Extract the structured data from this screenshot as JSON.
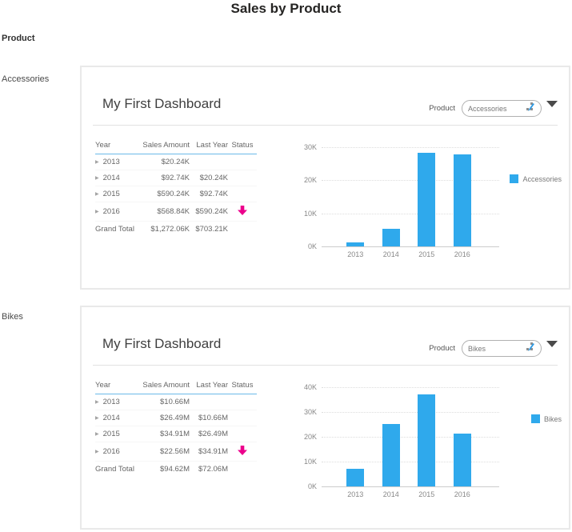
{
  "page": {
    "title": "Sales by Product",
    "field_label": "Product",
    "group_labels": [
      "Accessories",
      "Bikes"
    ]
  },
  "panels": [
    {
      "title": "My First Dashboard",
      "slicer": {
        "label": "Product",
        "value": "Accessories"
      },
      "table": {
        "headers": [
          "Year",
          "Sales Amount",
          "Last Year",
          "Status"
        ],
        "rows": [
          [
            "2013",
            "$20.24K",
            "",
            ""
          ],
          [
            "2014",
            "$92.74K",
            "$20.24K",
            ""
          ],
          [
            "2015",
            "$590.24K",
            "$92.74K",
            ""
          ],
          [
            "2016",
            "$568.84K",
            "$590.24K",
            "decrease"
          ]
        ],
        "grand_total": [
          "Grand Total",
          "$1,272.06K",
          "$703.21K",
          ""
        ]
      }
    },
    {
      "title": "My First Dashboard",
      "slicer": {
        "label": "Product",
        "value": "Bikes"
      },
      "table": {
        "headers": [
          "Year",
          "Sales Amount",
          "Last Year",
          "Status"
        ],
        "rows": [
          [
            "2013",
            "$10.66M",
            "",
            ""
          ],
          [
            "2014",
            "$26.49M",
            "$10.66M",
            ""
          ],
          [
            "2015",
            "$34.91M",
            "$26.49M",
            ""
          ],
          [
            "2016",
            "$22.56M",
            "$34.91M",
            "decrease"
          ]
        ],
        "grand_total": [
          "Grand Total",
          "$94.62M",
          "$72.06M",
          ""
        ]
      }
    }
  ],
  "chart_data": [
    {
      "type": "bar",
      "categories": [
        "2013",
        "2014",
        "2015",
        "2016"
      ],
      "series": [
        {
          "name": "Accessories",
          "values": [
            1.2,
            5.3,
            28.4,
            27.8
          ]
        }
      ],
      "title": "",
      "xlabel": "",
      "ylabel": "",
      "ylim": [
        0,
        30
      ],
      "ytick_step": 10,
      "ytick_suffix": "K",
      "grid": true,
      "legend_position": "right"
    },
    {
      "type": "bar",
      "categories": [
        "2013",
        "2014",
        "2015",
        "2016"
      ],
      "series": [
        {
          "name": "Bikes",
          "values": [
            7.2,
            25,
            37,
            21.2
          ]
        }
      ],
      "title": "",
      "xlabel": "",
      "ylabel": "",
      "ylim": [
        0,
        40
      ],
      "ytick_step": 10,
      "ytick_suffix": "K",
      "grid": true,
      "legend_position": "right"
    }
  ],
  "colors": {
    "bar": "#2FA9EC",
    "status_down": "#EC008C",
    "header_underline": "#6cb9e8"
  }
}
